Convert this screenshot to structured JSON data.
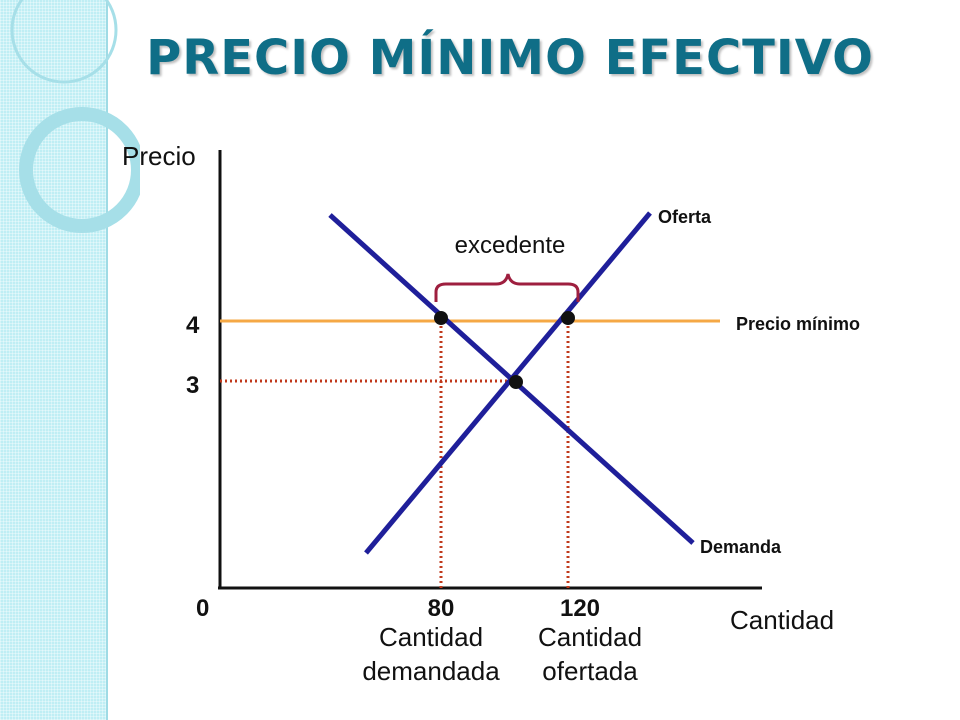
{
  "slide": {
    "title": "PRECIO MÍNIMO EFECTIVO",
    "accent_color": "#0f6e87",
    "side_strip_color": "#bfeef4"
  },
  "diagram": {
    "y_axis_label": "Precio",
    "x_axis_label": "Cantidad",
    "origin_label": "0",
    "price_ticks": [
      {
        "value": 4,
        "label": "4"
      },
      {
        "value": 3,
        "label": "3"
      }
    ],
    "quantity_ticks": [
      {
        "value": 80,
        "label": "80",
        "caption_line1": "Cantidad",
        "caption_line2": "demandada"
      },
      {
        "value": 120,
        "label": "120",
        "caption_line1": "Cantidad",
        "caption_line2": "ofertada"
      }
    ],
    "curves": {
      "supply_label": "Oferta",
      "demand_label": "Demanda",
      "floor_label": "Precio mínimo",
      "surplus_label": "excedente"
    },
    "colors": {
      "curve": "#1f1f9a",
      "floor": "#f5a845",
      "guide": "#c0391b",
      "brace": "#9e1f3f",
      "axis": "#111111",
      "point": "#111111"
    }
  }
}
